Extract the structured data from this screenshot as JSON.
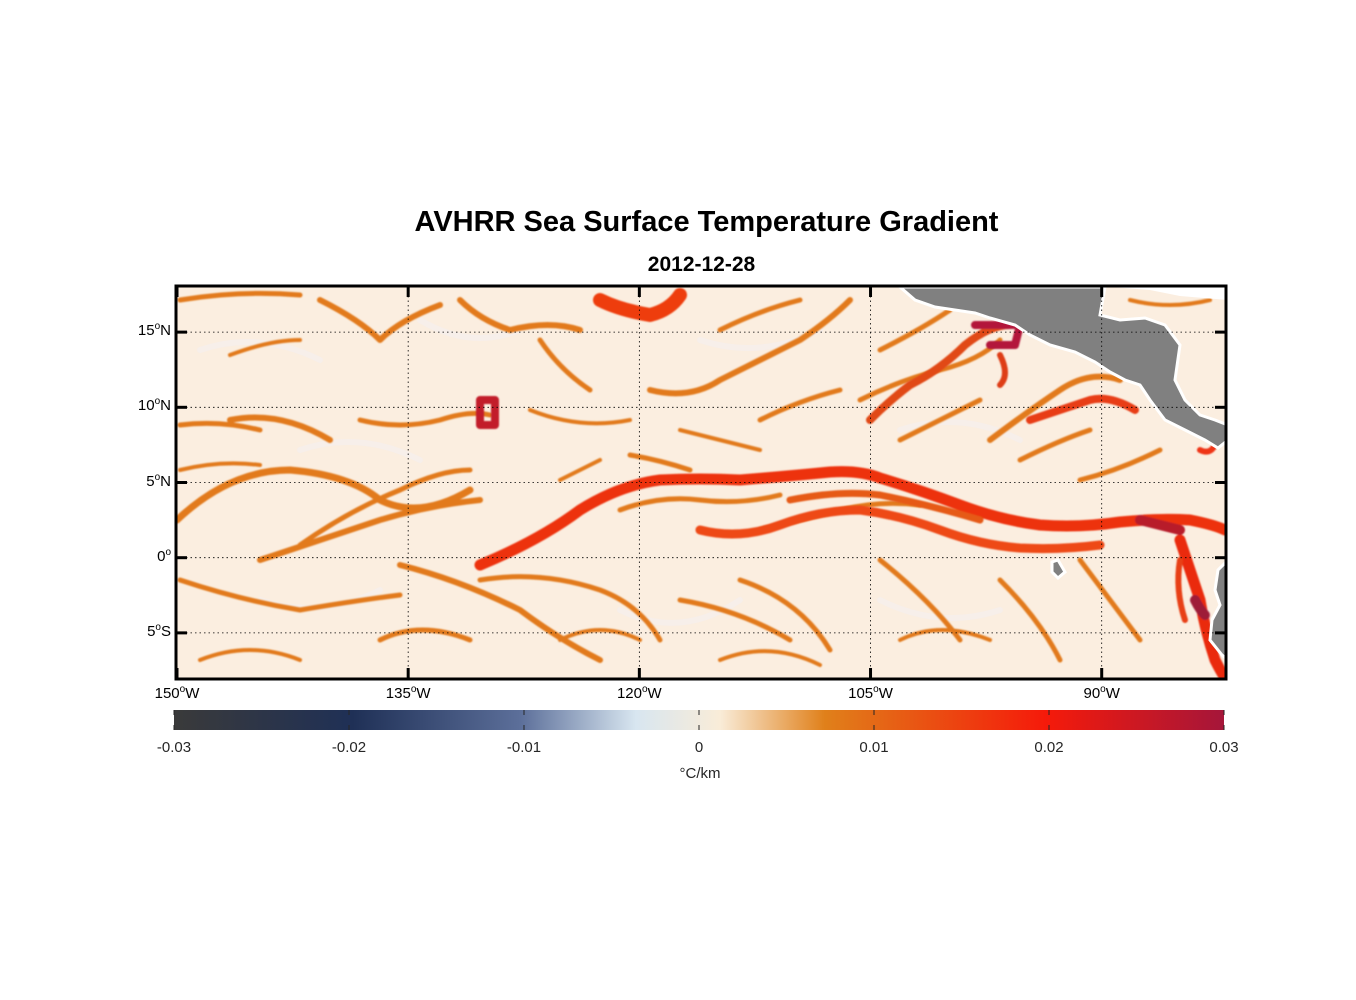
{
  "title": "AVHRR Sea Surface Temperature Gradient",
  "subtitle": "2012-12-28",
  "map": {
    "lon_range": [
      -150,
      -82
    ],
    "lat_range": [
      -8,
      18
    ],
    "lat_ticks": [
      {
        "value": 15,
        "deg": "15",
        "hemi": "N"
      },
      {
        "value": 10,
        "deg": "10",
        "hemi": "N"
      },
      {
        "value": 5,
        "deg": "5",
        "hemi": "N"
      },
      {
        "value": 0,
        "deg": "0",
        "hemi": ""
      },
      {
        "value": -5,
        "deg": "5",
        "hemi": "S"
      }
    ],
    "lon_ticks": [
      {
        "value": -150,
        "deg": "150",
        "hemi": "W"
      },
      {
        "value": -135,
        "deg": "135",
        "hemi": "W"
      },
      {
        "value": -120,
        "deg": "120",
        "hemi": "W"
      },
      {
        "value": -105,
        "deg": "105",
        "hemi": "W"
      },
      {
        "value": -90,
        "deg": "90",
        "hemi": "W"
      }
    ],
    "grid": true,
    "land_color": "#808080",
    "background_color": "#fbeee0"
  },
  "colorbar": {
    "range": [
      -0.03,
      0.03
    ],
    "ticks": [
      "-0.03",
      "-0.02",
      "-0.01",
      "0",
      "0.01",
      "0.02",
      "0.03"
    ],
    "unit": "°C/km",
    "colors": [
      "#3a3a3a",
      "#1f3056",
      "#5c6f9a",
      "#d8e6f0",
      "#f9ecd8",
      "#e0801a",
      "#f51a0a",
      "#a5163a"
    ]
  }
}
